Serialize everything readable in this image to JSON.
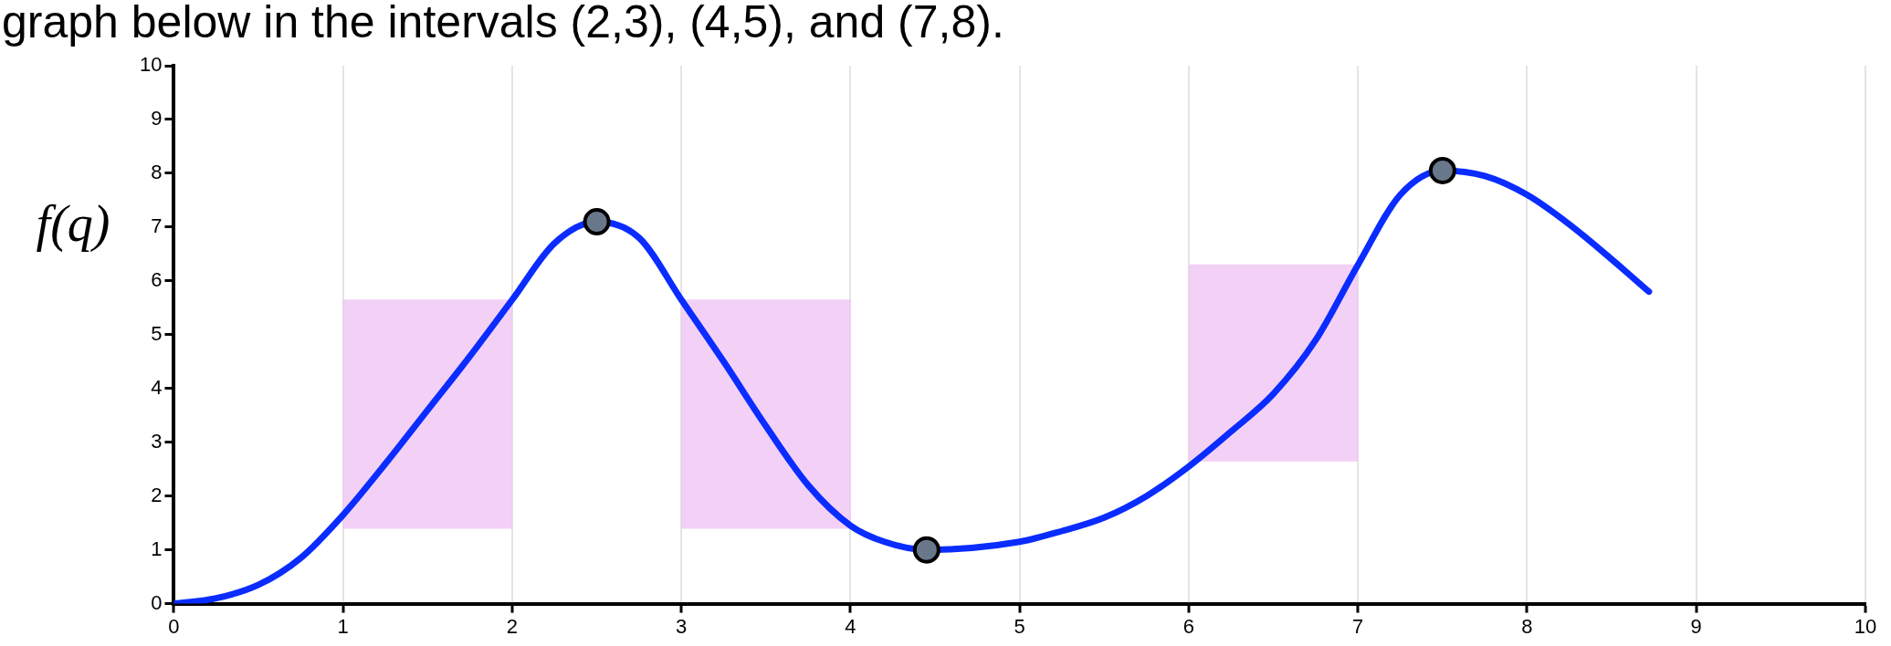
{
  "chart_data": {
    "type": "line",
    "title": "graph below in the intervals (2,3), (4,5), and (7,8).",
    "ylabel": "f(q)",
    "xlim": [
      0,
      10
    ],
    "ylim": [
      0,
      10
    ],
    "xticks": [
      0,
      1,
      2,
      3,
      4,
      5,
      6,
      7,
      8,
      9,
      10
    ],
    "yticks": [
      0,
      1,
      2,
      3,
      4,
      5,
      6,
      7,
      8,
      9,
      10
    ],
    "grid": "x",
    "legend": false,
    "series": [
      {
        "type": "bar",
        "color": "#f0c4f4",
        "x": [
          1.5,
          3.5,
          6.5
        ],
        "base": [
          1.4,
          1.4,
          2.65
        ],
        "values": [
          4.25,
          4.25,
          3.65
        ]
      },
      {
        "color": "#0a2cff",
        "marker": "none",
        "x": [
          0,
          0.25,
          0.5,
          0.75,
          1,
          1.25,
          1.5,
          1.75,
          2,
          2.25,
          2.5,
          2.75,
          3,
          3.25,
          3.5,
          3.75,
          4,
          4.2,
          4.45,
          5,
          5.25,
          5.5,
          5.75,
          6,
          6.25,
          6.5,
          6.75,
          7,
          7.25,
          7.5,
          7.75,
          8,
          8.25,
          8.5,
          8.72
        ],
        "values": [
          0,
          0.1,
          0.35,
          0.85,
          1.65,
          2.6,
          3.6,
          4.6,
          5.65,
          6.7,
          7.1,
          6.8,
          5.65,
          4.5,
          3.3,
          2.2,
          1.45,
          1.15,
          1.0,
          1.15,
          1.35,
          1.6,
          2.0,
          2.55,
          3.2,
          3.9,
          4.9,
          6.3,
          7.6,
          8.05,
          7.95,
          7.6,
          7.05,
          6.4,
          5.8
        ]
      },
      {
        "type": "scatter",
        "color": "#68788a",
        "marker": "circle",
        "x": [
          2.5,
          4.45,
          7.5
        ],
        "values": [
          7.1,
          1.0,
          8.05
        ]
      }
    ]
  }
}
